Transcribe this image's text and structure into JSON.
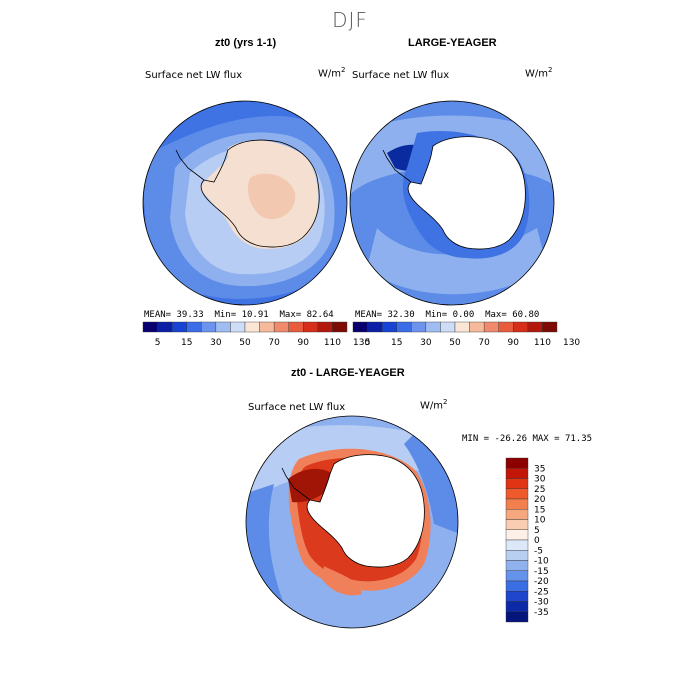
{
  "title": "DJF",
  "panels": [
    {
      "title": "zt0 (yrs 1-1)",
      "field_label": "Surface net LW flux",
      "units_base": "W/m",
      "units_exp": "2",
      "stats": {
        "mean_label": "MEAN=",
        "mean": "39.33",
        "min_label": "Min=",
        "min": "10.91",
        "max_label": "Max=",
        "max": "82.64"
      }
    },
    {
      "title": "LARGE-YEAGER",
      "field_label": "Surface net LW flux",
      "units_base": "W/m",
      "units_exp": "2",
      "stats": {
        "mean_label": "MEAN=",
        "mean": "32.30",
        "min_label": "Min=",
        "min": "0.00",
        "max_label": "Max=",
        "max": "60.80"
      }
    },
    {
      "title": "zt0 - LARGE-YEAGER",
      "field_label": "Surface net LW flux",
      "units_base": "W/m",
      "units_exp": "2",
      "minmax_text": "MIN = -26.26 MAX =  71.35"
    }
  ],
  "colorbar_top": {
    "tick_labels": [
      "5",
      "15",
      "30",
      "50",
      "70",
      "90",
      "110",
      "130"
    ],
    "colors": [
      "#08006e",
      "#0b1fa6",
      "#1744d4",
      "#3b6de8",
      "#6c94ee",
      "#9fbdf2",
      "#cddcf7",
      "#fbe6d6",
      "#f6b99b",
      "#f18a6c",
      "#e85c3d",
      "#d52e19",
      "#b3180c",
      "#7d0a05"
    ]
  },
  "colorbar_diff": {
    "tick_labels": [
      "35",
      "30",
      "25",
      "20",
      "15",
      "10",
      "5",
      "0",
      "-5",
      "-10",
      "-15",
      "-20",
      "-25",
      "-30",
      "-35"
    ],
    "colors_top_to_bottom": [
      "#8c0000",
      "#c41608",
      "#e03414",
      "#ee5a2c",
      "#f2804f",
      "#f5a77e",
      "#f9cdb2",
      "#fdf0e6",
      "#dce8f8",
      "#b8cff2",
      "#8fb2ee",
      "#6592ea",
      "#3c6ee3",
      "#1f46cc",
      "#0c2aa8",
      "#05157a"
    ]
  },
  "map_colors": {
    "ocean_deep": "#3f72e3",
    "ocean_mid": "#5c8ce8",
    "ocean_light": "#8eb0ee",
    "ocean_pale": "#b7cdf3",
    "ice_pale": "#f5dfd0",
    "ice_mid": "#f2c9b0",
    "land_white": "#ffffff",
    "dark_blue": "#0a2aa0",
    "red_dark": "#a01505",
    "red_mid": "#dc3a1c",
    "red_light": "#f0805a"
  }
}
